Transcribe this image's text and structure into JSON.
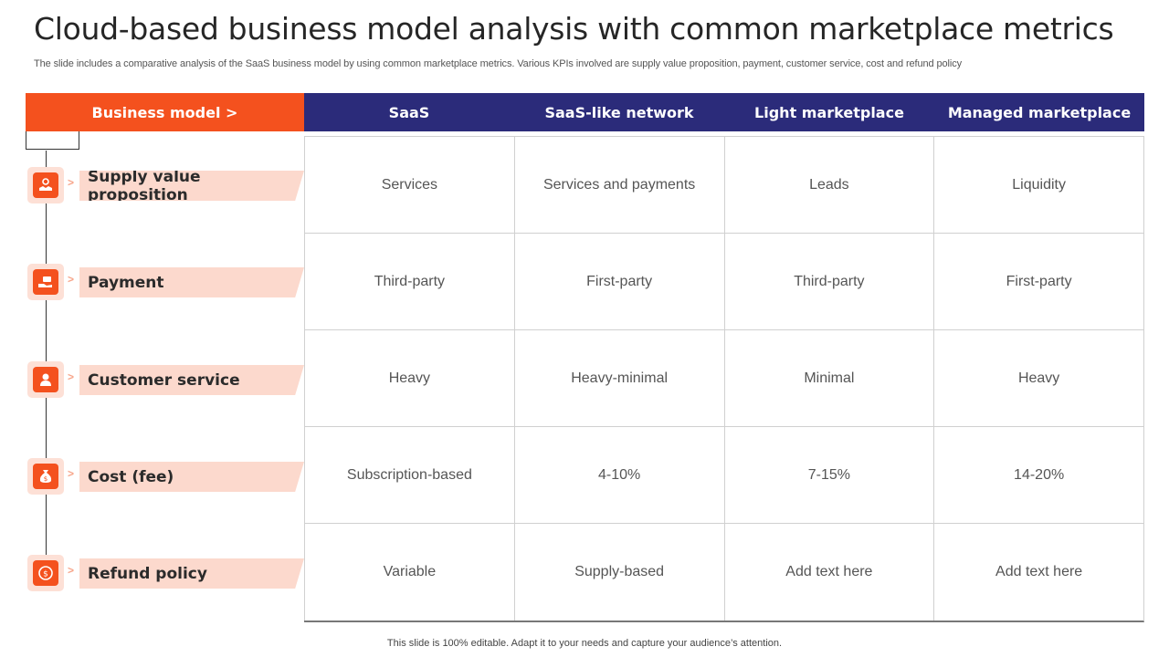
{
  "title": "Cloud-based business model analysis with common marketplace metrics",
  "subtitle": "The slide includes a comparative analysis of the SaaS business model by using common marketplace metrics. Various KPIs involved are supply value proposition, payment, customer service, cost and refund policy",
  "header": {
    "row_label": "Business model >",
    "columns": [
      "SaaS",
      "SaaS-like network",
      "Light marketplace",
      "Managed marketplace"
    ]
  },
  "rows": [
    {
      "label": "Supply value proposition",
      "icon": "handshake-gear-icon",
      "values": [
        "Services",
        "Services and payments",
        "Leads",
        "Liquidity"
      ]
    },
    {
      "label": "Payment",
      "icon": "hand-money-icon",
      "values": [
        "Third-party",
        "First-party",
        "Third-party",
        "First-party"
      ]
    },
    {
      "label": "Customer service",
      "icon": "support-agent-icon",
      "values": [
        "Heavy",
        "Heavy-minimal",
        "Minimal",
        "Heavy"
      ]
    },
    {
      "label": "Cost (fee)",
      "icon": "money-bag-icon",
      "values": [
        "Subscription-based",
        "4-10%",
        "7-15%",
        "14-20%"
      ]
    },
    {
      "label": "Refund policy",
      "icon": "dollar-coin-icon",
      "values": [
        "Variable",
        "Supply-based",
        "Add text here",
        "Add text here"
      ]
    }
  ],
  "footer": "This slide is 100% editable. Adapt it to your needs and capture your audience’s attention.",
  "colors": {
    "accent_orange": "#f4511e",
    "header_navy": "#2b2b7a",
    "label_band": "#fcd9cd"
  }
}
